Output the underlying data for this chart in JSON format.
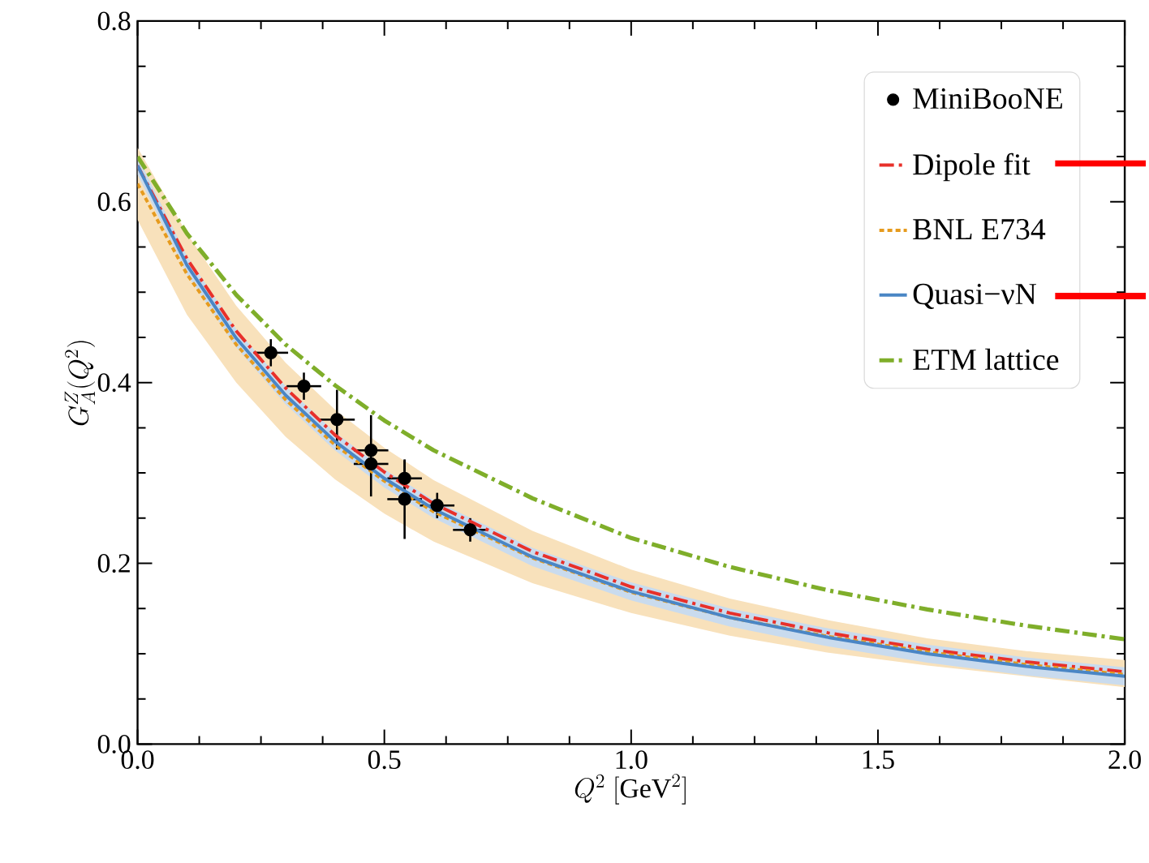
{
  "chart_data": {
    "type": "line",
    "xlabel": "Q^2\\ [\\mathrm{GeV}^2]",
    "ylabel": "G_A^Z(Q^2)",
    "xlim": [
      0,
      2
    ],
    "ylim": [
      0,
      0.8
    ],
    "xticks": [
      {
        "value": 0,
        "label": "0.0"
      },
      {
        "value": 0.5,
        "label": "0.5"
      },
      {
        "value": 1,
        "label": "1.0"
      },
      {
        "value": 1.5,
        "label": "1.5"
      },
      {
        "value": 2,
        "label": "2.0"
      }
    ],
    "yticks": [
      {
        "value": 0,
        "label": "0.0"
      },
      {
        "value": 0.2,
        "label": "0.2"
      },
      {
        "value": 0.4,
        "label": "0.4"
      },
      {
        "value": 0.6,
        "label": "0.6"
      },
      {
        "value": 0.8,
        "label": "0.8"
      }
    ],
    "legend": "top right",
    "series": [
      {
        "name": "MiniBooNE",
        "type": "scatter",
        "color": "#000000",
        "x": [
          0.27,
          0.337,
          0.404,
          0.473,
          0.473,
          0.541,
          0.541,
          0.607,
          0.674
        ],
        "values": [
          0.433,
          0.396,
          0.359,
          0.325,
          0.31,
          0.294,
          0.271,
          0.264,
          0.237
        ],
        "errors": [
          0.015,
          0.015,
          0.033,
          [
            0.274,
            0.364
          ],
          null,
          0.02,
          0.044,
          0.014,
          0.013
        ],
        "xerrors": [
          0.035,
          0.035,
          0.036,
          0.035,
          0.035,
          0.035,
          0.035,
          0.035,
          0.035
        ]
      },
      {
        "name": "Dipole fit",
        "line_style": "dashed",
        "color": "#e8302a",
        "x": [
          0,
          0.1,
          0.2,
          0.3,
          0.4,
          0.5,
          0.6,
          0.8,
          1.0,
          1.2,
          1.4,
          1.6,
          1.8,
          2.0
        ],
        "values": [
          0.64,
          0.537,
          0.457,
          0.394,
          0.342,
          0.301,
          0.266,
          0.213,
          0.174,
          0.145,
          0.123,
          0.105,
          0.091,
          0.08
        ]
      },
      {
        "name": "BNL E734",
        "line_style": "dotted",
        "color": "#e69b1e",
        "x": [
          0,
          0.1,
          0.2,
          0.3,
          0.4,
          0.5,
          0.6,
          0.8,
          1.0,
          1.2,
          1.4,
          1.6,
          1.8,
          2.0
        ],
        "values": [
          0.62,
          0.52,
          0.442,
          0.381,
          0.331,
          0.291,
          0.257,
          0.206,
          0.168,
          0.14,
          0.119,
          0.102,
          0.088,
          0.077
        ],
        "lower": [
          0.58,
          0.475,
          0.4,
          0.34,
          0.293,
          0.255,
          0.224,
          0.178,
          0.145,
          0.12,
          0.101,
          0.087,
          0.075,
          0.063
        ],
        "upper": [
          0.66,
          0.565,
          0.485,
          0.422,
          0.37,
          0.328,
          0.292,
          0.236,
          0.193,
          0.161,
          0.137,
          0.117,
          0.103,
          0.093
        ]
      },
      {
        "name": "Quasi−νN",
        "line_style": "solid",
        "color": "#4a86c5",
        "x": [
          0,
          0.1,
          0.2,
          0.3,
          0.4,
          0.5,
          0.6,
          0.8,
          1.0,
          1.2,
          1.4,
          1.6,
          1.8,
          2.0
        ],
        "values": [
          0.64,
          0.53,
          0.449,
          0.386,
          0.335,
          0.294,
          0.26,
          0.207,
          0.169,
          0.14,
          0.118,
          0.1,
          0.086,
          0.075
        ],
        "lower": [
          0.63,
          0.52,
          0.439,
          0.376,
          0.325,
          0.284,
          0.25,
          0.197,
          0.159,
          0.13,
          0.108,
          0.09,
          0.076,
          0.065
        ],
        "upper": [
          0.65,
          0.54,
          0.459,
          0.396,
          0.345,
          0.304,
          0.27,
          0.217,
          0.179,
          0.15,
          0.128,
          0.11,
          0.096,
          0.085
        ]
      },
      {
        "name": "ETM lattice",
        "line_style": "dashed",
        "color": "#7fae2a",
        "x": [
          0,
          0.1,
          0.2,
          0.3,
          0.4,
          0.5,
          0.6,
          0.8,
          1.0,
          1.2,
          1.4,
          1.6,
          1.8,
          2.0
        ],
        "values": [
          0.65,
          0.565,
          0.497,
          0.442,
          0.397,
          0.358,
          0.325,
          0.272,
          0.228,
          0.196,
          0.17,
          0.149,
          0.131,
          0.116
        ]
      }
    ]
  }
}
